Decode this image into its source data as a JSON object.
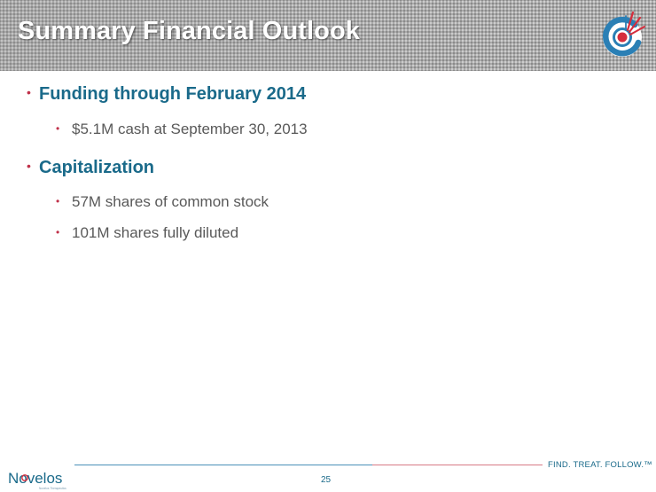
{
  "slide": {
    "title": "Summary Financial Outlook",
    "page_number": "25"
  },
  "bullets": [
    {
      "text": "Funding through February 2014",
      "sub": [
        "$5.1M cash at September  30, 2013"
      ]
    },
    {
      "text": "Capitalization",
      "sub": [
        "57M shares of common stock",
        "101M shares fully diluted"
      ]
    }
  ],
  "footer": {
    "brand": "Novelos",
    "brand_sub": "Novelos Therapeutics",
    "tagline": "FIND. TREAT. FOLLOW.™"
  },
  "colors": {
    "heading_blue": "#1a6a8a",
    "bullet_red": "#c0314a",
    "body_gray": "#595959",
    "logo_blue": "#2a7fb5",
    "logo_red": "#d62d3d"
  },
  "icons": {
    "header_logo": "target-burst-logo-icon",
    "bullet": "bullet-dot-icon"
  }
}
